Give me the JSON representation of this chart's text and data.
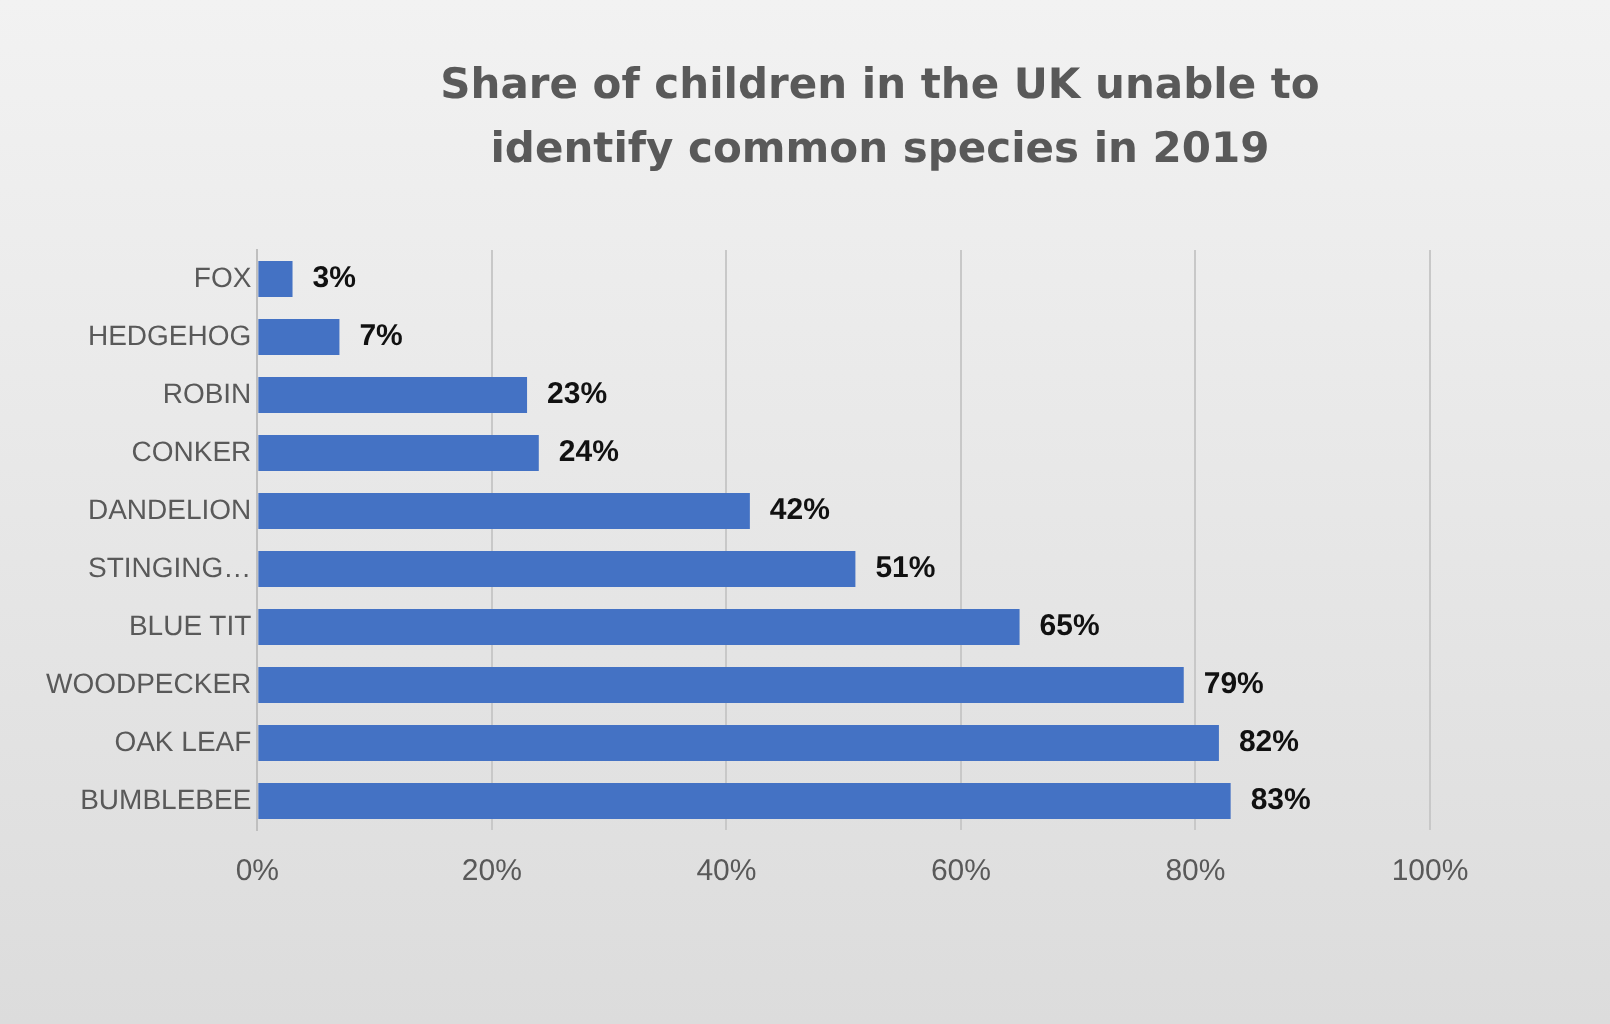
{
  "chart_data": {
    "type": "bar",
    "orientation": "horizontal",
    "title": "Share of children in the UK unable to identify common species in 2019",
    "categories": [
      "FOX",
      "HEDGEHOG",
      "ROBIN",
      "CONKER",
      "DANDELION",
      "STINGING…",
      "BLUE TIT",
      "WOODPECKER",
      "OAK LEAF",
      "BUMBLEBEE"
    ],
    "values": [
      3,
      7,
      23,
      24,
      42,
      51,
      65,
      79,
      82,
      83
    ],
    "value_labels": [
      "3%",
      "7%",
      "23%",
      "24%",
      "42%",
      "51%",
      "65%",
      "79%",
      "82%",
      "83%"
    ],
    "color": "#4472c4",
    "xlim": [
      0,
      100
    ],
    "xticks": [
      {
        "value": 0,
        "label": "0%"
      },
      {
        "value": 20,
        "label": "20%"
      },
      {
        "value": 40,
        "label": "40%"
      },
      {
        "value": 60,
        "label": "60%"
      },
      {
        "value": 80,
        "label": "80%"
      },
      {
        "value": 100,
        "label": "100%"
      }
    ],
    "grid": "x",
    "legend": false
  }
}
